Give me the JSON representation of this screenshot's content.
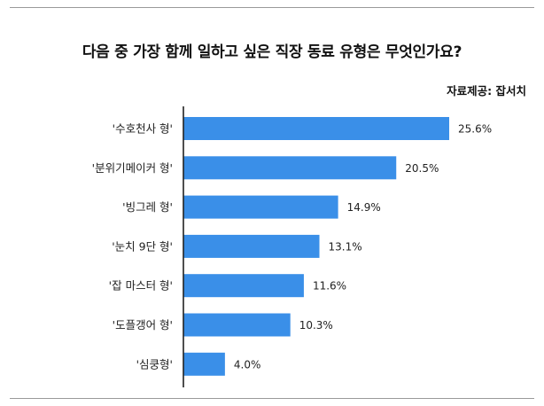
{
  "title": "다음 중 가장 함께 일하고 싶은 직장 동료 유형은 무엇인가요?",
  "source": "자료제공: 잡서치",
  "colors": {
    "bar": "#3a8fe8",
    "axis": "#222222"
  },
  "chart_data": {
    "type": "bar",
    "orientation": "horizontal",
    "title": "다음 중 가장 함께 일하고 싶은 직장 동료 유형은 무엇인가요?",
    "categories": [
      "'수호천사 형'",
      "'분위기메이커 형'",
      "'빙그레 형'",
      "'눈치 9단 형'",
      "'잡 마스터 형'",
      "'도플갱어 형'",
      "'심쿵형'"
    ],
    "values": [
      25.6,
      20.5,
      14.9,
      13.1,
      11.6,
      10.3,
      4.0
    ],
    "value_labels": [
      "25.6%",
      "20.5%",
      "14.9%",
      "13.1%",
      "11.6%",
      "10.3%",
      "4.0%"
    ],
    "xlim": [
      0,
      25.6
    ],
    "grid": false,
    "legend": "none"
  }
}
